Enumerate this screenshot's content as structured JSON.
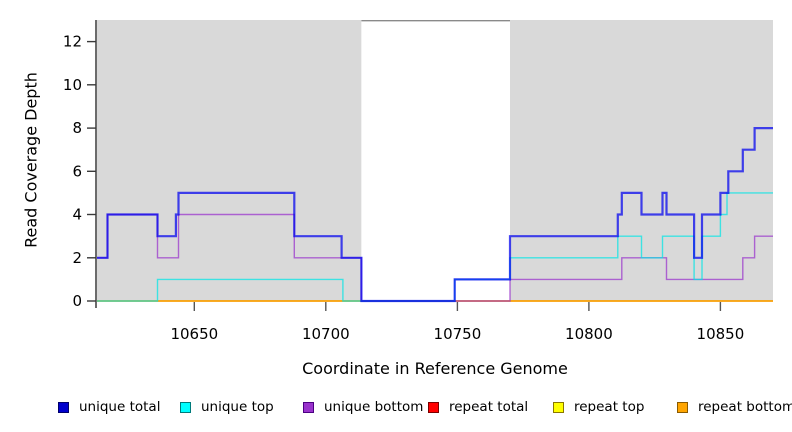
{
  "chart_data": {
    "type": "line",
    "subtype": "step-coverage",
    "title": "",
    "xlabel": "Coordinate in Reference Genome",
    "ylabel": "Read Coverage Depth",
    "xlim": [
      10613,
      10870
    ],
    "ylim": [
      0,
      13
    ],
    "xticks": [
      10650,
      10700,
      10750,
      10800,
      10850
    ],
    "yticks": [
      0,
      2,
      4,
      6,
      8,
      10,
      12
    ],
    "grid": false,
    "legend_position": "bottom",
    "line_opacity": 0.72,
    "background_regions": [
      {
        "name": "covered-region-left",
        "x0": 10613,
        "x1": 10713.5,
        "color": "#D9D9D9"
      },
      {
        "name": "uncovered-gap",
        "x0": 10713.5,
        "x1": 10770,
        "color": "#FFFFFF",
        "top_border_color": "#8A8A8A"
      },
      {
        "name": "covered-region-right",
        "x0": 10770,
        "x1": 10870,
        "color": "#D9D9D9"
      }
    ],
    "series": [
      {
        "name": "repeat total",
        "color": "#E60000",
        "swatch": "#FF0000",
        "swatch_border": "#7A0000",
        "width": 1.4,
        "points": [
          [
            10613,
            0
          ]
        ]
      },
      {
        "name": "repeat top",
        "color": "#F2E600",
        "swatch": "#FFFF00",
        "swatch_border": "#8A7700",
        "width": 1.4,
        "points": [
          [
            10613,
            0
          ]
        ]
      },
      {
        "name": "repeat bottom",
        "color": "#FF9E00",
        "swatch": "#FFA500",
        "swatch_border": "#8A5A00",
        "width": 1.4,
        "points": [
          [
            10613,
            0
          ]
        ]
      },
      {
        "name": "unique bottom",
        "color": "#9932CC",
        "swatch": "#9932CC",
        "swatch_border": "#4B0082",
        "width": 1.4,
        "points": [
          [
            10613,
            2
          ],
          [
            10617,
            4
          ],
          [
            10636,
            2
          ],
          [
            10644,
            4
          ],
          [
            10688,
            2
          ],
          [
            10713.5,
            0
          ],
          [
            10770,
            1
          ],
          [
            10812.5,
            2
          ],
          [
            10829.5,
            1
          ],
          [
            10858.5,
            2
          ],
          [
            10863,
            3
          ]
        ]
      },
      {
        "name": "unique top",
        "color": "#00E5E5",
        "swatch": "#00FFFF",
        "swatch_border": "#007A7A",
        "width": 1.4,
        "points": [
          [
            10613,
            0
          ],
          [
            10636,
            1
          ],
          [
            10706.5,
            0
          ],
          [
            10749,
            1
          ],
          [
            10770,
            2
          ],
          [
            10811,
            3
          ],
          [
            10820,
            2
          ],
          [
            10828,
            3
          ],
          [
            10840,
            1
          ],
          [
            10843,
            3
          ],
          [
            10850,
            4
          ],
          [
            10852.5,
            5
          ]
        ]
      },
      {
        "name": "unique total",
        "color": "#0000EE",
        "swatch": "#0000CD",
        "swatch_border": "#00006B",
        "width": 2.2,
        "points": [
          [
            10613,
            2
          ],
          [
            10617,
            4
          ],
          [
            10636,
            3
          ],
          [
            10643,
            4
          ],
          [
            10644,
            5
          ],
          [
            10688,
            3
          ],
          [
            10706,
            2
          ],
          [
            10713.5,
            0
          ],
          [
            10749,
            1
          ],
          [
            10770,
            3
          ],
          [
            10811,
            4
          ],
          [
            10812.5,
            5
          ],
          [
            10820,
            4
          ],
          [
            10828,
            5
          ],
          [
            10829.5,
            4
          ],
          [
            10840,
            2
          ],
          [
            10843,
            4
          ],
          [
            10850,
            5
          ],
          [
            10853,
            6
          ],
          [
            10858.5,
            7
          ],
          [
            10863,
            8
          ]
        ]
      }
    ],
    "legend_order": [
      "unique total",
      "unique top",
      "unique bottom",
      "repeat total",
      "repeat top",
      "repeat bottom"
    ]
  }
}
